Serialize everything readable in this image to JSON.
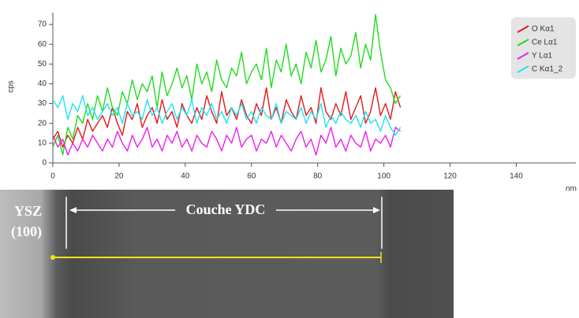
{
  "chart_data": {
    "type": "line",
    "xlabel": "nm",
    "ylabel": "cps",
    "xlim": [
      0,
      158
    ],
    "ylim": [
      0,
      76
    ],
    "xticks": [
      0,
      20,
      40,
      60,
      80,
      100,
      120,
      140
    ],
    "yticks": [
      0,
      10,
      20,
      30,
      40,
      50,
      60,
      70
    ],
    "x": [
      0,
      1.5,
      3,
      4.5,
      6,
      7.5,
      9,
      10.5,
      12,
      13.5,
      15,
      16.5,
      18,
      19.5,
      21,
      22.5,
      24,
      25.5,
      27,
      28.5,
      30,
      31.5,
      33,
      34.5,
      36,
      37.5,
      39,
      40.5,
      42,
      43.5,
      45,
      46.5,
      48,
      49.5,
      51,
      52.5,
      54,
      55.5,
      57,
      58.5,
      60,
      61.5,
      63,
      64.5,
      66,
      67.5,
      69,
      70.5,
      72,
      73.5,
      75,
      76.5,
      78,
      79.5,
      81,
      82.5,
      84,
      85.5,
      87,
      88.5,
      90,
      91.5,
      93,
      94.5,
      96,
      97.5,
      99,
      100.5,
      102,
      103.5,
      105
    ],
    "legend": "top-right",
    "series": [
      {
        "name": "O Kα1",
        "color": "#e31a1a",
        "values": [
          12,
          16,
          8,
          14,
          10,
          18,
          12,
          22,
          16,
          20,
          24,
          18,
          28,
          20,
          14,
          26,
          22,
          30,
          18,
          24,
          28,
          20,
          32,
          22,
          26,
          18,
          30,
          24,
          20,
          28,
          22,
          34,
          26,
          20,
          36,
          24,
          28,
          22,
          32,
          24,
          20,
          30,
          24,
          38,
          22,
          28,
          20,
          32,
          26,
          22,
          34,
          24,
          28,
          20,
          38,
          26,
          22,
          30,
          24,
          36,
          22,
          28,
          34,
          20,
          26,
          38,
          24,
          30,
          22,
          36,
          28
        ]
      },
      {
        "name": "Ce Lα1",
        "color": "#1fdc1f",
        "values": [
          8,
          14,
          4,
          18,
          12,
          24,
          20,
          30,
          22,
          34,
          26,
          38,
          28,
          24,
          36,
          30,
          42,
          32,
          40,
          36,
          44,
          28,
          46,
          34,
          40,
          48,
          38,
          44,
          32,
          50,
          40,
          46,
          36,
          52,
          42,
          38,
          48,
          44,
          56,
          40,
          46,
          50,
          42,
          58,
          38,
          52,
          46,
          60,
          44,
          50,
          40,
          56,
          48,
          62,
          46,
          52,
          64,
          44,
          58,
          50,
          54,
          66,
          48,
          60,
          52,
          75,
          56,
          42,
          38,
          30,
          34
        ]
      },
      {
        "name": "Y Lα1",
        "color": "#ec1fec",
        "values": [
          14,
          8,
          12,
          4,
          10,
          6,
          12,
          8,
          14,
          10,
          6,
          12,
          8,
          16,
          10,
          6,
          14,
          8,
          12,
          18,
          8,
          12,
          6,
          14,
          10,
          16,
          8,
          12,
          6,
          14,
          10,
          8,
          16,
          12,
          6,
          14,
          10,
          18,
          8,
          12,
          14,
          6,
          12,
          10,
          16,
          8,
          14,
          10,
          6,
          12,
          16,
          8,
          12,
          4,
          14,
          10,
          18,
          8,
          12,
          6,
          14,
          10,
          8,
          16,
          6,
          12,
          10,
          14,
          8,
          18,
          16
        ]
      },
      {
        "name": "C Kα1_2",
        "color": "#1fe4f0",
        "values": [
          32,
          28,
          34,
          22,
          30,
          26,
          34,
          24,
          28,
          22,
          26,
          30,
          24,
          28,
          20,
          30,
          24,
          26,
          22,
          32,
          24,
          28,
          20,
          26,
          30,
          22,
          28,
          24,
          32,
          20,
          28,
          24,
          30,
          22,
          26,
          20,
          28,
          24,
          30,
          22,
          26,
          20,
          28,
          24,
          22,
          30,
          20,
          26,
          24,
          22,
          28,
          20,
          26,
          22,
          30,
          18,
          24,
          20,
          26,
          22,
          20,
          24,
          18,
          26,
          20,
          22,
          16,
          24,
          18,
          14,
          18
        ]
      }
    ]
  },
  "image": {
    "labels": [
      "YSZ",
      "(100)",
      "Couche YDC"
    ]
  }
}
